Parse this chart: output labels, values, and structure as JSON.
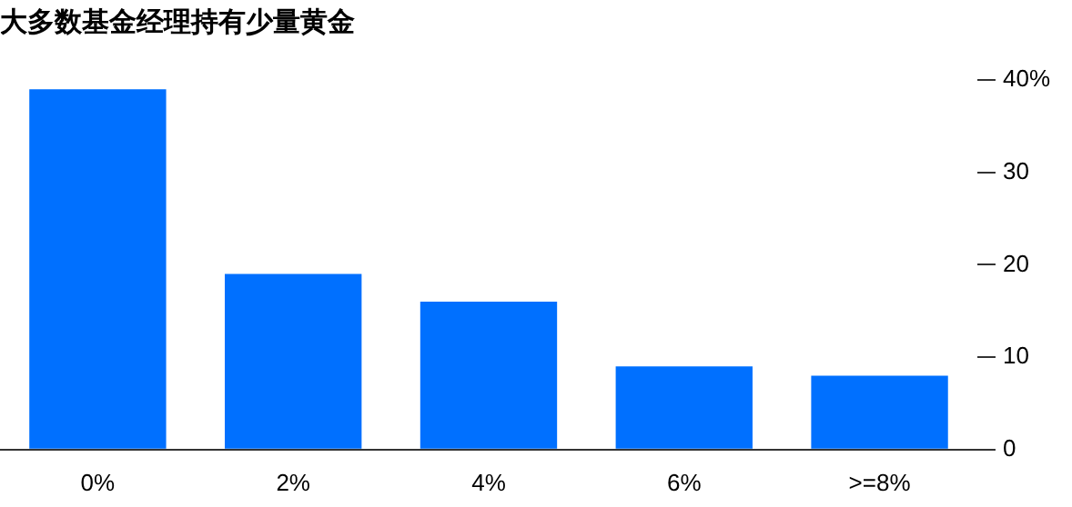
{
  "chart_data": {
    "type": "bar",
    "title": "大多数基金经理持有少量黄金",
    "categories": [
      "0%",
      "2%",
      "4%",
      "6%",
      ">=8%"
    ],
    "values": [
      39,
      19,
      16,
      9,
      8
    ],
    "color": "#0070ff",
    "ylim": [
      0,
      40
    ],
    "yticks": [
      0,
      10,
      20,
      30,
      {
        "value": 40,
        "label": "40%"
      }
    ],
    "grid": false,
    "legend": false
  }
}
